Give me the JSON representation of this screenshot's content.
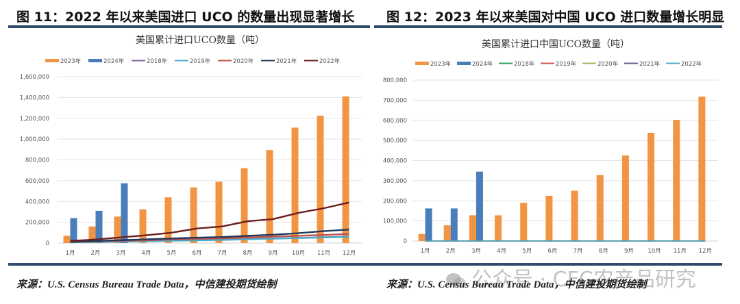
{
  "panels": [
    {
      "figure_title": "图 11：2022 年以来美国进口 UCO 的数量出现显著增长",
      "source": "来源：U.S. Census Bureau Trade Data，中信建投期货绘制"
    },
    {
      "figure_title": "图 12：2023 年以来美国对中国 UCO 进口数量增长明显",
      "source": "来源：U.S. Census Bureau Trade Data，中信建投期货绘制",
      "watermark": "公众号 · CFC农产品研究"
    }
  ],
  "chart_data": [
    {
      "type": "bar",
      "title": "美国累计进口UCO数量（吨）",
      "xlabel": "",
      "ylabel": "",
      "categories": [
        "1月",
        "2月",
        "3月",
        "4月",
        "5月",
        "6月",
        "7月",
        "8月",
        "9月",
        "10月",
        "11月",
        "12月"
      ],
      "ylim": [
        0,
        1600000
      ],
      "yticks": [
        0,
        200000,
        400000,
        600000,
        800000,
        1000000,
        1200000,
        1400000,
        1600000
      ],
      "ytick_labels": [
        "0",
        "200,000",
        "400,000",
        "600,000",
        "800,000",
        "1,000,000",
        "1,200,000",
        "1,400,000",
        "1,600,000"
      ],
      "grid": true,
      "legend_position": "top",
      "bar_series": [
        {
          "name": "2023年",
          "color": "#f29543",
          "values": [
            70000,
            160000,
            255000,
            325000,
            440000,
            535000,
            590000,
            720000,
            895000,
            1110000,
            1225000,
            1410000
          ]
        },
        {
          "name": "2024年",
          "color": "#4a7ebb",
          "values": [
            240000,
            310000,
            575000,
            null,
            null,
            null,
            null,
            null,
            null,
            null,
            null,
            null
          ]
        }
      ],
      "line_series": [
        {
          "name": "2018年",
          "color": "#8064a2",
          "values": [
            8000,
            12000,
            16000,
            20000,
            24000,
            28000,
            32000,
            38000,
            44000,
            50000,
            56000,
            62000
          ]
        },
        {
          "name": "2019年",
          "color": "#4bacc6",
          "values": [
            6000,
            10000,
            14000,
            18000,
            22000,
            26000,
            30000,
            36000,
            42000,
            48000,
            54000,
            60000
          ]
        },
        {
          "name": "2020年",
          "color": "#c0504d",
          "values": [
            10000,
            16000,
            22000,
            28000,
            34000,
            40000,
            46000,
            54000,
            62000,
            70000,
            78000,
            88000
          ]
        },
        {
          "name": "2021年",
          "color": "#1f3a5a",
          "values": [
            12000,
            20000,
            28000,
            36000,
            44000,
            52000,
            58000,
            70000,
            80000,
            95000,
            115000,
            130000
          ]
        },
        {
          "name": "2022年",
          "color": "#6b1e1e",
          "values": [
            20000,
            35000,
            55000,
            75000,
            100000,
            140000,
            160000,
            210000,
            230000,
            290000,
            335000,
            390000
          ]
        }
      ],
      "legend": [
        "2023年",
        "2024年",
        "2018年",
        "2019年",
        "2020年",
        "2021年",
        "2022年"
      ]
    },
    {
      "type": "bar",
      "title": "美国累计进口中国UCO数量（吨）",
      "xlabel": "",
      "ylabel": "",
      "categories": [
        "1月",
        "2月",
        "3月",
        "4月",
        "5月",
        "6月",
        "7月",
        "8月",
        "9月",
        "10月",
        "11月",
        "12月"
      ],
      "ylim": [
        0,
        800000
      ],
      "yticks": [
        0,
        100000,
        200000,
        300000,
        400000,
        500000,
        600000,
        700000,
        800000
      ],
      "ytick_labels": [
        "0",
        "100,000",
        "200,000",
        "300,000",
        "400,000",
        "500,000",
        "600,000",
        "700,000",
        "800,000"
      ],
      "grid": true,
      "legend_position": "top",
      "bar_series": [
        {
          "name": "2023年",
          "color": "#f29543",
          "values": [
            35000,
            78000,
            128000,
            128000,
            190000,
            225000,
            250000,
            328000,
            425000,
            538000,
            602000,
            718000
          ]
        },
        {
          "name": "2024年",
          "color": "#4a7ebb",
          "values": [
            162000,
            162000,
            345000,
            null,
            null,
            null,
            null,
            null,
            null,
            null,
            null,
            null
          ]
        }
      ],
      "line_series": [
        {
          "name": "2018年",
          "color": "#2e9e5b",
          "values": [
            0,
            0,
            0,
            0,
            0,
            0,
            0,
            0,
            0,
            0,
            0,
            0
          ]
        },
        {
          "name": "2019年",
          "color": "#d9534f",
          "values": [
            0,
            0,
            0,
            0,
            0,
            0,
            0,
            0,
            0,
            0,
            0,
            0
          ]
        },
        {
          "name": "2020年",
          "color": "#9bbb59",
          "values": [
            0,
            0,
            0,
            0,
            0,
            0,
            0,
            0,
            0,
            0,
            0,
            0
          ]
        },
        {
          "name": "2021年",
          "color": "#6a5a9a",
          "values": [
            0,
            0,
            0,
            0,
            0,
            0,
            0,
            0,
            0,
            0,
            0,
            0
          ]
        },
        {
          "name": "2022年",
          "color": "#4bacc6",
          "values": [
            0,
            0,
            0,
            0,
            0,
            0,
            0,
            0,
            0,
            0,
            0,
            0
          ]
        }
      ],
      "legend": [
        "2023年",
        "2024年",
        "2018年",
        "2019年",
        "2020年",
        "2021年",
        "2022年"
      ]
    }
  ]
}
